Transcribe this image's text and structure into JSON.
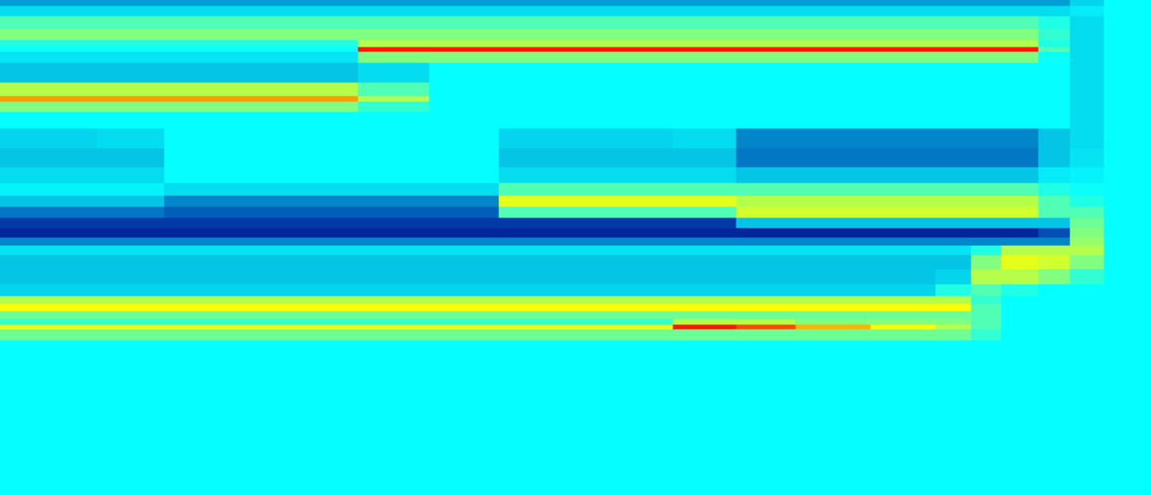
{
  "chart_data": {
    "type": "heatmap",
    "tick_labels": false,
    "grid": false,
    "xlim": [
      0,
      1455
    ],
    "ylim": [
      626,
      0
    ],
    "zlim": [
      0,
      1
    ],
    "x": [
      5,
      80,
      165,
      250,
      400,
      505,
      580,
      680,
      800,
      900,
      960,
      1050,
      1150,
      1215,
      1240,
      1290,
      1335,
      1370,
      1420
    ],
    "y": [
      3,
      12,
      28,
      45,
      56,
      62,
      68,
      90,
      118,
      125,
      132,
      150,
      175,
      200,
      222,
      240,
      255,
      268,
      282,
      295,
      305,
      315,
      330,
      350,
      368,
      380,
      388,
      398,
      408,
      413,
      420,
      440,
      530,
      620
    ],
    "cells": [
      [
        0.25,
        0.25,
        0.25,
        0.25,
        0.25,
        0.25,
        0.25,
        0.25,
        0.25,
        0.25,
        0.25,
        0.25,
        0.25,
        0.25,
        0.25,
        0.25,
        0.25,
        0.32,
        0.375
      ],
      [
        0.33,
        0.33,
        0.33,
        0.33,
        0.33,
        0.33,
        0.33,
        0.33,
        0.33,
        0.33,
        0.33,
        0.33,
        0.33,
        0.33,
        0.33,
        0.33,
        0.33,
        0.35,
        0.375
      ],
      [
        0.45,
        0.45,
        0.45,
        0.45,
        0.45,
        0.45,
        0.45,
        0.45,
        0.45,
        0.45,
        0.45,
        0.45,
        0.45,
        0.45,
        0.45,
        0.45,
        0.4,
        0.33,
        0.375
      ],
      [
        0.5,
        0.5,
        0.5,
        0.5,
        0.5,
        0.5,
        0.5,
        0.5,
        0.5,
        0.5,
        0.5,
        0.5,
        0.5,
        0.5,
        0.5,
        0.5,
        0.42,
        0.33,
        0.375
      ],
      [
        0.4,
        0.4,
        0.4,
        0.4,
        0.4,
        0.55,
        0.55,
        0.55,
        0.55,
        0.55,
        0.55,
        0.55,
        0.55,
        0.55,
        0.55,
        0.55,
        0.4,
        0.33,
        0.375
      ],
      [
        0.38,
        0.38,
        0.38,
        0.38,
        0.38,
        0.85,
        0.85,
        0.85,
        0.85,
        0.85,
        0.85,
        0.85,
        0.85,
        0.85,
        0.85,
        0.85,
        0.45,
        0.33,
        0.375
      ],
      [
        0.34,
        0.34,
        0.34,
        0.34,
        0.34,
        0.5,
        0.5,
        0.5,
        0.5,
        0.5,
        0.5,
        0.5,
        0.5,
        0.5,
        0.5,
        0.5,
        0.38,
        0.33,
        0.375
      ],
      [
        0.3,
        0.3,
        0.3,
        0.3,
        0.3,
        0.33,
        0.375,
        0.375,
        0.375,
        0.375,
        0.375,
        0.375,
        0.375,
        0.375,
        0.375,
        0.375,
        0.375,
        0.33,
        0.375
      ],
      [
        0.55,
        0.55,
        0.55,
        0.55,
        0.55,
        0.45,
        0.375,
        0.375,
        0.375,
        0.375,
        0.375,
        0.375,
        0.375,
        0.375,
        0.375,
        0.375,
        0.375,
        0.33,
        0.375
      ],
      [
        0.72,
        0.72,
        0.72,
        0.72,
        0.72,
        0.55,
        0.375,
        0.375,
        0.375,
        0.375,
        0.375,
        0.375,
        0.375,
        0.375,
        0.375,
        0.375,
        0.375,
        0.33,
        0.375
      ],
      [
        0.5,
        0.5,
        0.5,
        0.5,
        0.5,
        0.42,
        0.375,
        0.375,
        0.375,
        0.375,
        0.375,
        0.375,
        0.375,
        0.375,
        0.375,
        0.375,
        0.375,
        0.33,
        0.375
      ],
      [
        0.375,
        0.375,
        0.375,
        0.375,
        0.375,
        0.375,
        0.375,
        0.375,
        0.375,
        0.375,
        0.375,
        0.375,
        0.375,
        0.375,
        0.375,
        0.375,
        0.375,
        0.33,
        0.375
      ],
      [
        0.32,
        0.32,
        0.33,
        0.375,
        0.375,
        0.375,
        0.375,
        0.32,
        0.32,
        0.33,
        0.22,
        0.22,
        0.22,
        0.22,
        0.22,
        0.22,
        0.3,
        0.33,
        0.375
      ],
      [
        0.3,
        0.3,
        0.3,
        0.375,
        0.375,
        0.375,
        0.375,
        0.3,
        0.3,
        0.3,
        0.2,
        0.2,
        0.2,
        0.2,
        0.2,
        0.2,
        0.3,
        0.34,
        0.375
      ],
      [
        0.33,
        0.33,
        0.33,
        0.375,
        0.375,
        0.375,
        0.375,
        0.33,
        0.33,
        0.33,
        0.3,
        0.3,
        0.3,
        0.3,
        0.3,
        0.3,
        0.35,
        0.36,
        0.375
      ],
      [
        0.36,
        0.36,
        0.36,
        0.33,
        0.33,
        0.33,
        0.33,
        0.45,
        0.45,
        0.45,
        0.45,
        0.45,
        0.45,
        0.45,
        0.45,
        0.45,
        0.4,
        0.38,
        0.375
      ],
      [
        0.3,
        0.3,
        0.3,
        0.22,
        0.22,
        0.22,
        0.22,
        0.6,
        0.6,
        0.6,
        0.55,
        0.55,
        0.55,
        0.55,
        0.55,
        0.55,
        0.45,
        0.4,
        0.375
      ],
      [
        0.2,
        0.2,
        0.2,
        0.17,
        0.17,
        0.17,
        0.17,
        0.45,
        0.45,
        0.45,
        0.58,
        0.58,
        0.58,
        0.58,
        0.58,
        0.58,
        0.45,
        0.45,
        0.375
      ],
      [
        0.12,
        0.12,
        0.12,
        0.12,
        0.12,
        0.12,
        0.12,
        0.12,
        0.12,
        0.12,
        0.3,
        0.3,
        0.3,
        0.3,
        0.3,
        0.3,
        0.3,
        0.48,
        0.375
      ],
      [
        0.08,
        0.08,
        0.08,
        0.08,
        0.08,
        0.08,
        0.08,
        0.08,
        0.08,
        0.08,
        0.08,
        0.08,
        0.08,
        0.08,
        0.08,
        0.08,
        0.15,
        0.5,
        0.375
      ],
      [
        0.22,
        0.22,
        0.22,
        0.22,
        0.22,
        0.22,
        0.22,
        0.22,
        0.22,
        0.22,
        0.22,
        0.22,
        0.22,
        0.22,
        0.22,
        0.22,
        0.22,
        0.52,
        0.375
      ],
      [
        0.34,
        0.34,
        0.34,
        0.34,
        0.34,
        0.34,
        0.34,
        0.34,
        0.34,
        0.34,
        0.34,
        0.34,
        0.34,
        0.34,
        0.4,
        0.55,
        0.55,
        0.55,
        0.375
      ],
      [
        0.3,
        0.3,
        0.3,
        0.3,
        0.3,
        0.3,
        0.3,
        0.3,
        0.3,
        0.3,
        0.3,
        0.3,
        0.3,
        0.3,
        0.5,
        0.6,
        0.58,
        0.5,
        0.375
      ],
      [
        0.3,
        0.3,
        0.3,
        0.3,
        0.3,
        0.3,
        0.3,
        0.3,
        0.3,
        0.3,
        0.3,
        0.3,
        0.3,
        0.32,
        0.55,
        0.55,
        0.5,
        0.42,
        0.375
      ],
      [
        0.32,
        0.32,
        0.32,
        0.32,
        0.32,
        0.32,
        0.32,
        0.32,
        0.32,
        0.32,
        0.32,
        0.32,
        0.32,
        0.4,
        0.45,
        0.4,
        0.375,
        0.375,
        0.375
      ],
      [
        0.55,
        0.55,
        0.55,
        0.55,
        0.55,
        0.55,
        0.55,
        0.55,
        0.55,
        0.55,
        0.55,
        0.55,
        0.55,
        0.55,
        0.42,
        0.375,
        0.375,
        0.375,
        0.375
      ],
      [
        0.62,
        0.62,
        0.62,
        0.62,
        0.62,
        0.62,
        0.62,
        0.62,
        0.62,
        0.62,
        0.62,
        0.62,
        0.62,
        0.62,
        0.45,
        0.375,
        0.375,
        0.375,
        0.375
      ],
      [
        0.48,
        0.48,
        0.48,
        0.48,
        0.48,
        0.48,
        0.48,
        0.48,
        0.48,
        0.48,
        0.48,
        0.48,
        0.48,
        0.48,
        0.45,
        0.375,
        0.375,
        0.375,
        0.375
      ],
      [
        0.42,
        0.42,
        0.42,
        0.42,
        0.42,
        0.42,
        0.42,
        0.42,
        0.42,
        0.55,
        0.55,
        0.5,
        0.5,
        0.5,
        0.45,
        0.375,
        0.375,
        0.375,
        0.375
      ],
      [
        0.6,
        0.6,
        0.6,
        0.6,
        0.6,
        0.6,
        0.6,
        0.6,
        0.6,
        0.85,
        0.8,
        0.7,
        0.62,
        0.55,
        0.45,
        0.375,
        0.375,
        0.375,
        0.375
      ],
      [
        0.48,
        0.48,
        0.48,
        0.48,
        0.48,
        0.48,
        0.48,
        0.48,
        0.48,
        0.48,
        0.48,
        0.48,
        0.48,
        0.48,
        0.42,
        0.375,
        0.375,
        0.375,
        0.375
      ],
      [
        0.375,
        0.375,
        0.375,
        0.375,
        0.375,
        0.375,
        0.375,
        0.375,
        0.375,
        0.375,
        0.375,
        0.375,
        0.375,
        0.375,
        0.375,
        0.375,
        0.375,
        0.375,
        0.375
      ],
      [
        0.375,
        0.375,
        0.375,
        0.375,
        0.375,
        0.375,
        0.375,
        0.375,
        0.375,
        0.375,
        0.375,
        0.375,
        0.375,
        0.375,
        0.375,
        0.375,
        0.375,
        0.375,
        0.375
      ],
      [
        0.375,
        0.375,
        0.375,
        0.375,
        0.375,
        0.375,
        0.375,
        0.375,
        0.375,
        0.375,
        0.375,
        0.375,
        0.375,
        0.375,
        0.375,
        0.375,
        0.375,
        0.375,
        0.375
      ]
    ]
  }
}
